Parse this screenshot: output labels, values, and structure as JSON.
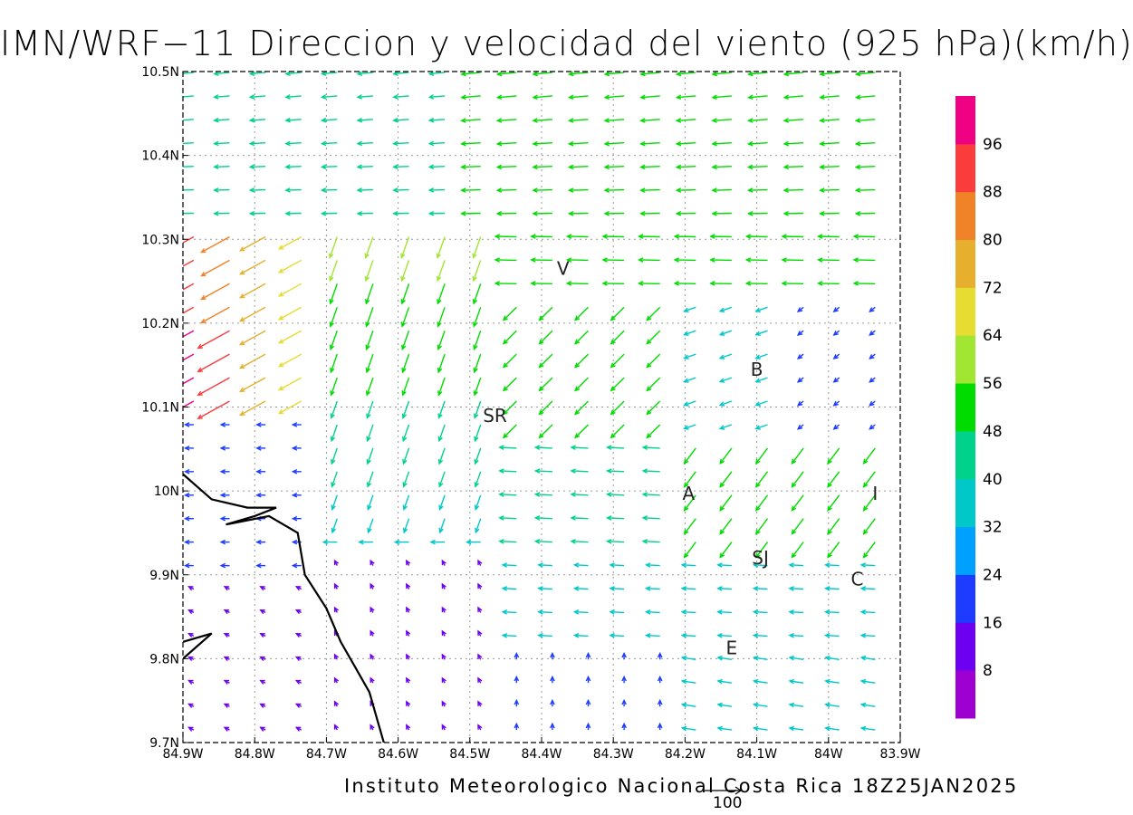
{
  "title": "IMN/WRF−11 Direccion y velocidad del viento (925 hPa)(km/h)",
  "credit": "Instituto Meteorologico Nacional Costa Rica 18Z25JAN2025",
  "reference_vector_label": "100",
  "map": {
    "lon_range": [
      -84.9,
      -83.9
    ],
    "lat_range": [
      9.7,
      10.5
    ],
    "x_ticks": [
      "84.9W",
      "84.8W",
      "84.7W",
      "84.6W",
      "84.5W",
      "84.4W",
      "84.3W",
      "84.2W",
      "84.1W",
      "84W",
      "83.9W"
    ],
    "y_ticks": [
      "9.7N",
      "9.8N",
      "9.9N",
      "10N",
      "10.1N",
      "10.2N",
      "10.3N",
      "10.4N",
      "10.5N"
    ],
    "grid": "dotted",
    "place_labels": [
      {
        "text": "V",
        "lon": -84.37,
        "lat": 10.265
      },
      {
        "text": "SR",
        "lon": -84.465,
        "lat": 10.09
      },
      {
        "text": "B",
        "lon": -84.1,
        "lat": 10.145
      },
      {
        "text": "A",
        "lon": -84.195,
        "lat": 9.997
      },
      {
        "text": "I",
        "lon": -83.935,
        "lat": 9.997
      },
      {
        "text": "SJ",
        "lon": -84.095,
        "lat": 9.92
      },
      {
        "text": "C",
        "lon": -83.96,
        "lat": 9.895
      },
      {
        "text": "E",
        "lon": -84.135,
        "lat": 9.813
      }
    ],
    "coastline": [
      [
        -84.9,
        10.02
      ],
      [
        -84.86,
        9.99
      ],
      [
        -84.81,
        9.98
      ],
      [
        -84.77,
        9.98
      ],
      [
        -84.8,
        9.97
      ],
      [
        -84.84,
        9.96
      ],
      [
        -84.78,
        9.97
      ],
      [
        -84.74,
        9.95
      ],
      [
        -84.73,
        9.9
      ],
      [
        -84.7,
        9.86
      ],
      [
        -84.68,
        9.82
      ],
      [
        -84.66,
        9.79
      ],
      [
        -84.64,
        9.76
      ],
      [
        -84.63,
        9.73
      ],
      [
        -84.62,
        9.7
      ]
    ],
    "coastline_nw": [
      [
        -84.9,
        9.82
      ],
      [
        -84.86,
        9.83
      ],
      [
        -84.9,
        9.8
      ]
    ]
  },
  "colorbar": {
    "labels": [
      "8",
      "16",
      "24",
      "32",
      "40",
      "48",
      "56",
      "64",
      "72",
      "80",
      "88",
      "96"
    ],
    "colors": [
      "#9e00d2",
      "#6d00f0",
      "#1e3cff",
      "#00a0ff",
      "#00c8c8",
      "#00d28c",
      "#00dc00",
      "#a0e632",
      "#e6dc32",
      "#e6af2d",
      "#f08228",
      "#fa3c3c",
      "#f00082"
    ]
  },
  "wind_field_summary": "Vectores de viento predominantemente del este/noreste; maximos ~90 km/h en el extremo noroeste"
}
